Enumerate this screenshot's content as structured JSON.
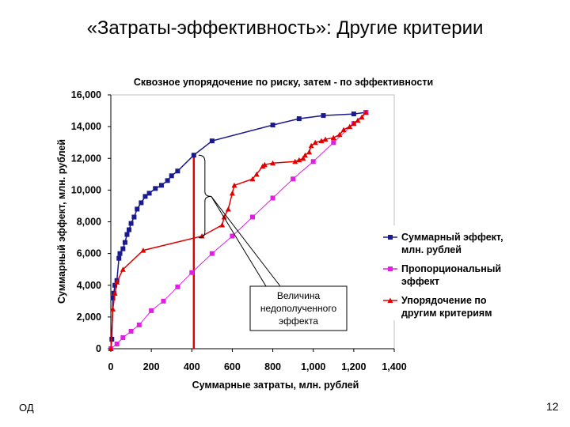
{
  "slide": {
    "title": "«Затраты-эффективность»: Другие критерии",
    "footer_left": "ОД",
    "page_number": "12"
  },
  "chart_data": {
    "type": "line",
    "title": "Сквозное упорядочение по риску, затем - по эффективности",
    "xlabel": "Суммарные затраты, млн. рублей",
    "ylabel": "Суммарный эффект, млн. рублей",
    "xlim": [
      0,
      1400
    ],
    "ylim": [
      0,
      16000
    ],
    "x_ticks": [
      "0",
      "200",
      "400",
      "600",
      "800",
      "1,000",
      "1,200",
      "1,400"
    ],
    "y_ticks": [
      "0",
      "2,000",
      "4,000",
      "6,000",
      "8,000",
      "10,000",
      "12,000",
      "14,000",
      "16,000"
    ],
    "grid": false,
    "legend_position": "right",
    "series": [
      {
        "name": "Суммарный эффект, млн. рублей",
        "color": "#1a1a8c",
        "marker": "square",
        "points": [
          [
            0,
            0
          ],
          [
            5,
            600
          ],
          [
            10,
            3200
          ],
          [
            15,
            3500
          ],
          [
            20,
            4000
          ],
          [
            30,
            4300
          ],
          [
            40,
            5700
          ],
          [
            45,
            6000
          ],
          [
            60,
            6300
          ],
          [
            70,
            6700
          ],
          [
            80,
            7200
          ],
          [
            90,
            7500
          ],
          [
            100,
            7900
          ],
          [
            115,
            8300
          ],
          [
            130,
            8800
          ],
          [
            150,
            9200
          ],
          [
            170,
            9600
          ],
          [
            190,
            9800
          ],
          [
            220,
            10100
          ],
          [
            250,
            10300
          ],
          [
            280,
            10600
          ],
          [
            300,
            10900
          ],
          [
            330,
            11200
          ],
          [
            410,
            12200
          ],
          [
            500,
            13100
          ],
          [
            800,
            14100
          ],
          [
            930,
            14500
          ],
          [
            1050,
            14700
          ],
          [
            1200,
            14800
          ],
          [
            1260,
            14900
          ]
        ]
      },
      {
        "name": "Пропорциональный эффект",
        "color": "#e020e0",
        "marker": "square",
        "points": [
          [
            0,
            0
          ],
          [
            30,
            300
          ],
          [
            60,
            700
          ],
          [
            100,
            1100
          ],
          [
            140,
            1500
          ],
          [
            200,
            2400
          ],
          [
            260,
            3000
          ],
          [
            330,
            3900
          ],
          [
            400,
            4800
          ],
          [
            500,
            6000
          ],
          [
            600,
            7100
          ],
          [
            700,
            8300
          ],
          [
            800,
            9500
          ],
          [
            900,
            10700
          ],
          [
            1000,
            11800
          ],
          [
            1100,
            13000
          ],
          [
            1200,
            14200
          ],
          [
            1260,
            14900
          ]
        ]
      },
      {
        "name": "Упорядочение по другим критериям",
        "color": "#e00000",
        "marker": "triangle",
        "points": [
          [
            0,
            0
          ],
          [
            10,
            2500
          ],
          [
            20,
            3500
          ],
          [
            30,
            4200
          ],
          [
            60,
            5000
          ],
          [
            160,
            6200
          ],
          [
            450,
            7100
          ],
          [
            550,
            7800
          ],
          [
            560,
            8300
          ],
          [
            580,
            8800
          ],
          [
            600,
            9800
          ],
          [
            610,
            10300
          ],
          [
            700,
            10700
          ],
          [
            720,
            11000
          ],
          [
            750,
            11500
          ],
          [
            760,
            11600
          ],
          [
            800,
            11700
          ],
          [
            910,
            11800
          ],
          [
            930,
            11900
          ],
          [
            950,
            12000
          ],
          [
            960,
            12200
          ],
          [
            980,
            12400
          ],
          [
            990,
            12800
          ],
          [
            1010,
            13000
          ],
          [
            1040,
            13100
          ],
          [
            1060,
            13200
          ],
          [
            1100,
            13300
          ],
          [
            1130,
            13500
          ],
          [
            1150,
            13800
          ],
          [
            1180,
            14000
          ],
          [
            1200,
            14200
          ],
          [
            1220,
            14400
          ],
          [
            1240,
            14600
          ],
          [
            1260,
            14900
          ]
        ]
      }
    ],
    "annotation": {
      "text_lines": [
        "Величина",
        "недополученного",
        "эффекта"
      ],
      "at_cost": 410,
      "bracket_from": 7000,
      "bracket_to": 12200
    },
    "vertical_marker": {
      "x": 410,
      "color": "#e00000"
    }
  }
}
